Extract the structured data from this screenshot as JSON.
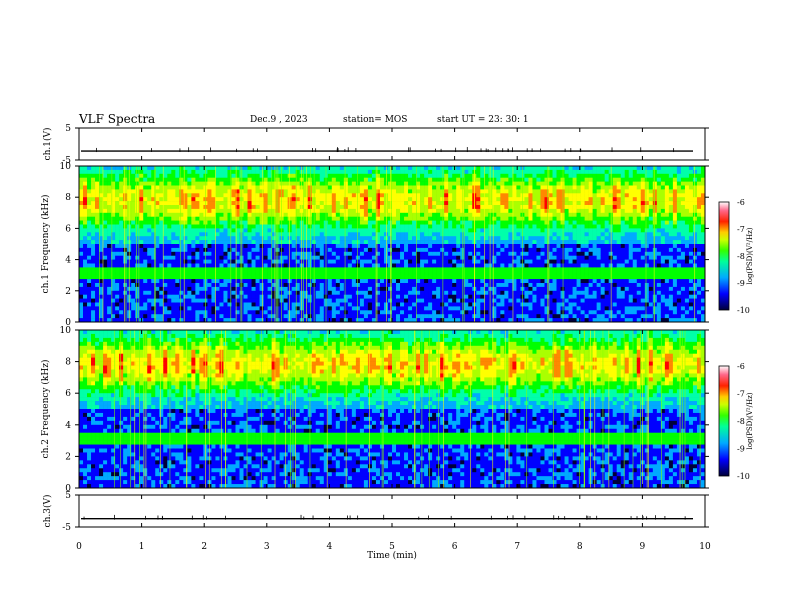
{
  "header": {
    "title": "VLF Spectra",
    "date": "Dec.9 , 2023",
    "station": "station= MOS",
    "start": "start UT = 23: 30: 1"
  },
  "chart_data": [
    {
      "type": "line",
      "name": "ch1-voltage",
      "ylabel": "ch.1(V)",
      "ylim": [
        -5,
        5
      ],
      "yticks": [
        "5",
        "-5"
      ],
      "x": [
        0,
        10
      ],
      "values": [
        -2.2,
        -2.2
      ]
    },
    {
      "type": "heatmap",
      "name": "ch1-spectrogram",
      "ylabel": "ch.1 Frequency (kHz)",
      "ylim": [
        0,
        10
      ],
      "yticks": [
        "0",
        "2",
        "4",
        "6",
        "8",
        "10"
      ],
      "xlim": [
        0,
        10
      ],
      "colorbar": {
        "label": "log(PSD)(V²/Hz)",
        "range": [
          -10,
          -6
        ],
        "ticks": [
          "-6",
          "-7",
          "-8",
          "-9",
          "-10"
        ]
      }
    },
    {
      "type": "heatmap",
      "name": "ch2-spectrogram",
      "ylabel": "ch.2 Frequency (kHz)",
      "ylim": [
        0,
        10
      ],
      "yticks": [
        "0",
        "2",
        "4",
        "6",
        "8",
        "10"
      ],
      "xlim": [
        0,
        10
      ],
      "colorbar": {
        "label": "log(PSD)(V²/Hz)",
        "range": [
          -10,
          -6
        ],
        "ticks": [
          "-6",
          "-7",
          "-8",
          "-9",
          "-10"
        ]
      }
    },
    {
      "type": "line",
      "name": "ch3-voltage",
      "ylabel": "ch.3(V)",
      "ylim": [
        -5,
        5
      ],
      "yticks": [
        "5",
        "-5"
      ],
      "x": [
        0,
        10
      ],
      "values": [
        -2.4,
        -2.4
      ]
    }
  ],
  "xaxis": {
    "label": "Time (min)",
    "range": [
      0,
      10
    ],
    "ticks": [
      "0",
      "1",
      "2",
      "3",
      "4",
      "5",
      "6",
      "7",
      "8",
      "9",
      "10"
    ]
  },
  "colors": {
    "colormap": [
      "#00003a",
      "#0000ff",
      "#00aaff",
      "#00ffaa",
      "#00ff00",
      "#aaff00",
      "#ffff00",
      "#ff8800",
      "#ff0000",
      "#ffffff"
    ]
  }
}
